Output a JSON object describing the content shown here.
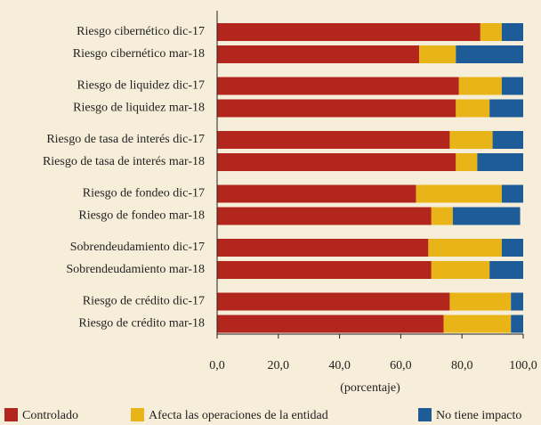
{
  "chart_data": {
    "type": "stacked-barh",
    "categories": [
      "Riesgo cibernético dic-17",
      "Riesgo cibernético mar-18",
      "Riesgo de liquidez dic-17",
      "Riesgo de liquidez mar-18",
      "Riesgo de tasa de interés dic-17",
      "Riesgo de tasa de interés mar-18",
      "Riesgo de fondeo dic-17",
      "Riesgo de fondeo mar-18",
      "Sobrendeudamiento dic-17",
      "Sobrendeudamiento mar-18",
      "Riesgo de crédito dic-17",
      "Riesgo de crédito mar-18"
    ],
    "series": [
      {
        "name": "Controlado",
        "color": "#b3261e",
        "values": [
          86,
          66,
          79,
          78,
          76,
          78,
          65,
          70,
          69,
          70,
          76,
          74
        ]
      },
      {
        "name": "Afecta las operaciones de la entidad",
        "color": "#e8b418",
        "values": [
          7,
          12,
          14,
          11,
          14,
          7,
          28,
          7,
          24,
          19,
          20,
          22
        ]
      },
      {
        "name": "No tiene impacto",
        "color": "#1e5c98",
        "values": [
          7,
          22,
          7,
          11,
          10,
          15,
          7,
          22,
          7,
          11,
          4,
          4
        ]
      }
    ],
    "xlim": [
      0,
      100
    ],
    "xticks": [
      {
        "value": 0,
        "label": "0,0"
      },
      {
        "value": 20,
        "label": "20,0"
      },
      {
        "value": 40,
        "label": "40,0"
      },
      {
        "value": 60,
        "label": "60,0"
      },
      {
        "value": 80,
        "label": "80,0"
      },
      {
        "value": 100,
        "label": "100,0"
      }
    ],
    "xlabel": "(porcentaje)",
    "legend": "bottom"
  }
}
